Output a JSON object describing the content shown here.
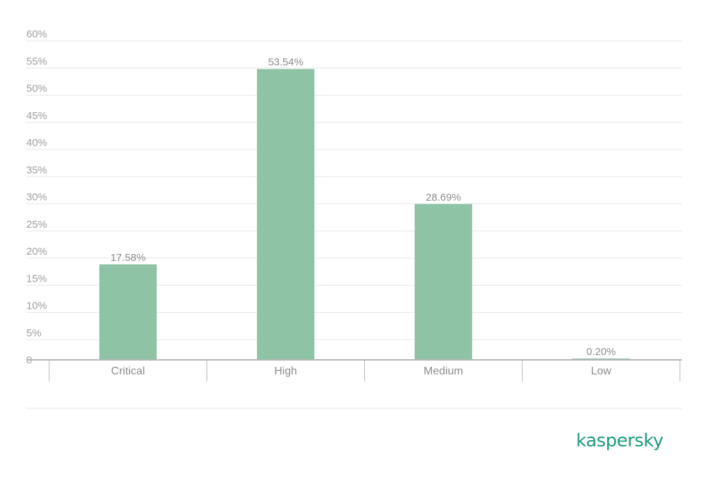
{
  "chart_data": {
    "type": "bar",
    "categories": [
      "Critical",
      "High",
      "Medium",
      "Low"
    ],
    "values": [
      17.58,
      53.54,
      28.69,
      0.2
    ],
    "value_labels": [
      "17.58%",
      "53.54%",
      "28.69%",
      "0.20%"
    ],
    "y_ticks": [
      "0",
      "5%",
      "10%",
      "15%",
      "20%",
      "25%",
      "30%",
      "35%",
      "40%",
      "45%",
      "50%",
      "55%",
      "60%"
    ],
    "ylim": [
      0,
      60
    ],
    "grid": true,
    "legend": "none",
    "title": "",
    "xlabel": "",
    "ylabel": ""
  },
  "colors": {
    "bar": "#8fc3a6",
    "grid": "#e6e6e6",
    "axis": "#b5b5b5",
    "brand": "#1c9b7e"
  },
  "logo": {
    "text": "kaspersky"
  }
}
